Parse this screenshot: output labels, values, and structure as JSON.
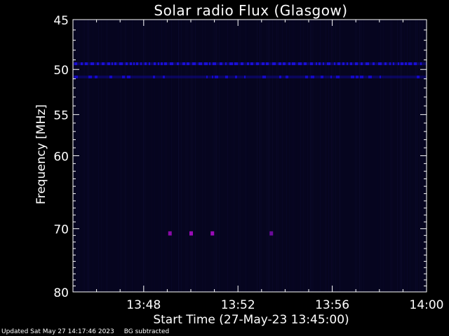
{
  "chart_data": {
    "type": "heatmap",
    "title": "Solar radio Flux (Glasgow)",
    "xlabel": "Start Time (27-May-23 13:45:00)",
    "ylabel": "Frequency [MHz]",
    "x_ticks": [
      "13:48",
      "13:52",
      "13:56",
      "14:00"
    ],
    "x_tick_minutes": [
      3,
      7,
      11,
      15
    ],
    "x_range_minutes": [
      0,
      15
    ],
    "y_ticks": [
      45,
      50,
      55,
      60,
      70,
      80
    ],
    "ylim": [
      80,
      45
    ],
    "y_scale": "log",
    "background_color": "#06051f",
    "bands": [
      {
        "frequency": 49.4,
        "intensity": "moderate",
        "color": "#1a0fd6",
        "description": "continuous interference band"
      },
      {
        "frequency": 50.8,
        "intensity": "moderate",
        "color": "#1408c8",
        "description": "intermittent interference band"
      }
    ],
    "bursts": [
      {
        "minute": 4.1,
        "frequency": 70.7,
        "color": "#8a0aa8"
      },
      {
        "minute": 5.0,
        "frequency": 70.7,
        "color": "#9a0cb8"
      },
      {
        "minute": 5.9,
        "frequency": 70.7,
        "color": "#9a0cb8"
      },
      {
        "minute": 8.4,
        "frequency": 70.7,
        "color": "#6a0a9a"
      }
    ]
  },
  "footer": {
    "updated": "Updated Sat May 27 14:17:46 2023",
    "note": "BG subtracted"
  }
}
